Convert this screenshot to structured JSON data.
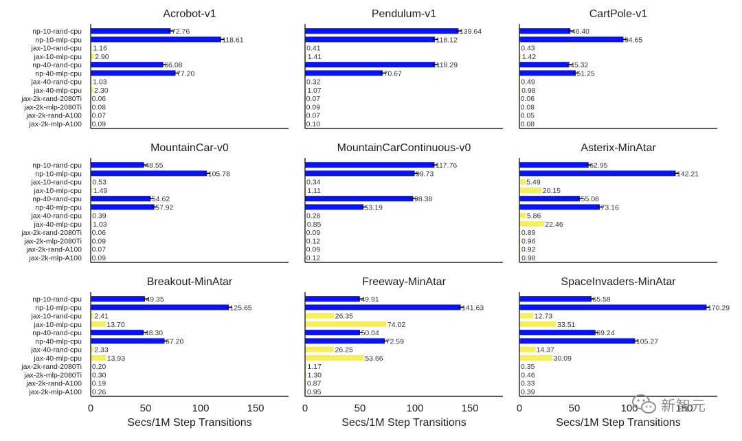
{
  "categories": [
    "np-10-rand-cpu",
    "np-10-mlp-cpu",
    "jax-10-rand-cpu",
    "jax-10-mlp-cpu",
    "np-40-rand-cpu",
    "np-40-mlp-cpu",
    "jax-40-rand-cpu",
    "jax-40-mlp-cpu",
    "jax-2k-rand-2080Ti",
    "jax-2k-mlp-2080Ti",
    "jax-2k-rand-A100",
    "jax-2k-mlp-A100"
  ],
  "colors": {
    "numpy": "#0a14f0",
    "jax": "#f5f05a",
    "error": "#000000",
    "axis": "#222222"
  },
  "xlabel": "Secs/1M Step Transitions",
  "xticks": [
    0,
    50,
    100,
    150
  ],
  "xlim": [
    0,
    180
  ],
  "watermark": {
    "text": "新智元",
    "icon": "wechat-logo-icon"
  },
  "chart_data": [
    {
      "type": "bar",
      "orientation": "horizontal",
      "title": "Acrobot-v1",
      "values": [
        72.76,
        118.61,
        1.16,
        2.9,
        66.08,
        77.2,
        1.03,
        2.3,
        0.06,
        0.08,
        0.07,
        0.09
      ],
      "labels": [
        "72.76",
        "118.61",
        "1.16",
        "2.90",
        "66.08",
        "77.20",
        "1.03",
        "2.30",
        "0.06",
        "0.08",
        "0.07",
        "0.09"
      ]
    },
    {
      "type": "bar",
      "orientation": "horizontal",
      "title": "Pendulum-v1",
      "values": [
        139.64,
        118.12,
        0.41,
        1.41,
        118.29,
        70.67,
        0.32,
        1.07,
        0.07,
        0.09,
        0.07,
        0.1
      ],
      "labels": [
        "139.64",
        "118.12",
        "0.41",
        "1.41",
        "118.29",
        "70.67",
        "0.32",
        "1.07",
        "0.07",
        "0.09",
        "0.07",
        "0.10"
      ]
    },
    {
      "type": "bar",
      "orientation": "horizontal",
      "title": "CartPole-v1",
      "values": [
        46.4,
        94.65,
        0.43,
        1.42,
        45.32,
        51.25,
        0.49,
        0.98,
        0.06,
        0.08,
        0.05,
        0.08
      ],
      "labels": [
        "46.40",
        "94.65",
        "0.43",
        "1.42",
        "45.32",
        "51.25",
        "0.49",
        "0.98",
        "0.06",
        "0.08",
        "0.05",
        "0.08"
      ]
    },
    {
      "type": "bar",
      "orientation": "horizontal",
      "title": "MountainCar-v0",
      "values": [
        48.55,
        105.78,
        0.53,
        1.49,
        54.62,
        57.92,
        0.39,
        1.03,
        0.06,
        0.09,
        0.07,
        0.09
      ],
      "labels": [
        "48.55",
        "105.78",
        "0.53",
        "1.49",
        "54.62",
        "57.92",
        "0.39",
        "1.03",
        "0.06",
        "0.09",
        "0.07",
        "0.09"
      ]
    },
    {
      "type": "bar",
      "orientation": "horizontal",
      "title": "MountainCarContinuous-v0",
      "values": [
        117.76,
        99.73,
        0.34,
        1.11,
        98.38,
        53.19,
        0.28,
        0.85,
        0.09,
        0.12,
        0.09,
        0.12
      ],
      "labels": [
        "117.76",
        "99.73",
        "0.34",
        "1.11",
        "98.38",
        "53.19",
        "0.28",
        "0.85",
        "0.09",
        "0.12",
        "0.09",
        "0.12"
      ]
    },
    {
      "type": "bar",
      "orientation": "horizontal",
      "title": "Asterix-MinAtar",
      "values": [
        62.95,
        142.21,
        5.49,
        20.15,
        55.08,
        73.16,
        5.86,
        22.46,
        0.89,
        0.96,
        0.92,
        0.98
      ],
      "labels": [
        "62.95",
        "142.21",
        "5.49",
        "20.15",
        "55.08",
        "73.16",
        "5.86",
        "22.46",
        "0.89",
        "0.96",
        "0.92",
        "0.98"
      ]
    },
    {
      "type": "bar",
      "orientation": "horizontal",
      "title": "Breakout-MinAtar",
      "values": [
        49.35,
        125.65,
        2.41,
        13.7,
        48.3,
        67.2,
        2.33,
        13.93,
        0.2,
        0.3,
        0.19,
        0.26
      ],
      "labels": [
        "49.35",
        "125.65",
        "2.41",
        "13.70",
        "48.30",
        "67.20",
        "2.33",
        "13.93",
        "0.20",
        "0.30",
        "0.19",
        "0.26"
      ]
    },
    {
      "type": "bar",
      "orientation": "horizontal",
      "title": "Freeway-MinAtar",
      "values": [
        49.91,
        141.63,
        26.35,
        74.02,
        50.04,
        72.59,
        26.25,
        53.66,
        1.17,
        1.3,
        0.87,
        0.95
      ],
      "labels": [
        "49.91",
        "141.63",
        "26.35",
        "74.02",
        "50.04",
        "72.59",
        "26.25",
        "53.66",
        "1.17",
        "1.30",
        "0.87",
        "0.95"
      ]
    },
    {
      "type": "bar",
      "orientation": "horizontal",
      "title": "SpaceInvaders-MinAtar",
      "values": [
        65.58,
        170.29,
        12.73,
        33.51,
        69.24,
        105.27,
        14.37,
        30.09,
        0.35,
        0.46,
        0.33,
        0.39
      ],
      "labels": [
        "65.58",
        "170.29",
        "12.73",
        "33.51",
        "69.24",
        "105.27",
        "14.37",
        "30.09",
        "0.35",
        "0.46",
        "0.33",
        "0.39"
      ]
    }
  ]
}
